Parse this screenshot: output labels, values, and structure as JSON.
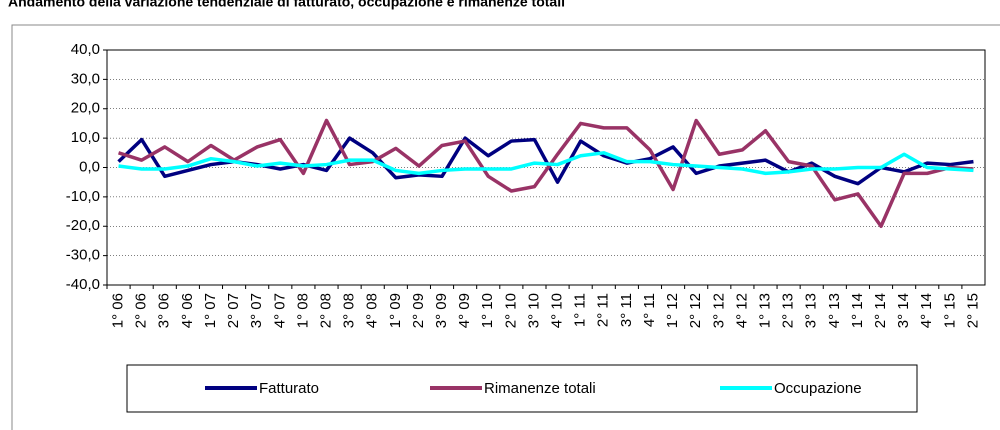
{
  "chart_data": {
    "type": "line",
    "title": "Andamento della variazione tendenziale di fatturato, occupazione e rimanenze totali",
    "categories": [
      "1° 06",
      "2° 06",
      "3° 06",
      "4° 06",
      "1° 07",
      "2° 07",
      "3° 07",
      "4° 07",
      "1° 08",
      "2° 08",
      "3° 08",
      "4° 08",
      "1° 09",
      "2° 09",
      "3° 09",
      "4° 09",
      "1° 10",
      "2° 10",
      "3° 10",
      "4° 10",
      "1° 11",
      "2° 11",
      "3° 11",
      "4° 11",
      "1° 12",
      "2° 12",
      "3° 12",
      "4° 12",
      "1° 13",
      "2° 13",
      "3° 13",
      "4° 13",
      "1° 14",
      "2° 14",
      "3° 14",
      "4° 14",
      "1° 15",
      "2° 15"
    ],
    "series": [
      {
        "name": "Fatturato",
        "color": "#000080",
        "values": [
          2,
          9.5,
          -3,
          -1,
          1,
          2,
          1,
          -0.5,
          1,
          -1,
          10,
          5,
          -3.5,
          -2.5,
          -3,
          10,
          4,
          9,
          9.5,
          -5,
          9,
          4,
          1.5,
          3,
          7,
          -2,
          0.5,
          1.5,
          2.5,
          -1.5,
          1.5,
          -3,
          -5.5,
          0,
          -1.5,
          1.5,
          1,
          2
        ]
      },
      {
        "name": "Rimanenze totali",
        "color": "#993366",
        "values": [
          5,
          2.5,
          7,
          2,
          7.5,
          2.5,
          7,
          9.5,
          -2,
          16,
          1,
          2,
          6.5,
          0.5,
          7.5,
          9,
          -3,
          -8,
          -6.5,
          4.5,
          15,
          13.5,
          13.5,
          6,
          -7.5,
          16,
          4.5,
          6,
          12.5,
          2,
          0.5,
          -11,
          -9,
          -20,
          -2,
          -2,
          0,
          -0.5
        ]
      },
      {
        "name": "Occupazione",
        "color": "#00ffff",
        "values": [
          0.5,
          -0.5,
          -0.5,
          0.5,
          3,
          2,
          0.5,
          1.5,
          0.5,
          1,
          2.5,
          2.5,
          -1,
          -2,
          -1,
          -0.5,
          -0.5,
          -0.5,
          1.5,
          1,
          4,
          5,
          2,
          2,
          1,
          0.5,
          0,
          -0.5,
          -2,
          -1.5,
          -0.5,
          -0.5,
          0,
          0,
          4.5,
          0,
          -0.5,
          -1
        ]
      }
    ],
    "ylim": [
      -40,
      40
    ],
    "yticks": [
      {
        "value": -40,
        "label": "-40,0"
      },
      {
        "value": -30,
        "label": "-30,0"
      },
      {
        "value": -20,
        "label": "-20,0"
      },
      {
        "value": -10,
        "label": "-10,0"
      },
      {
        "value": 0,
        "label": "0,0"
      },
      {
        "value": 10,
        "label": "10,0"
      },
      {
        "value": 20,
        "label": "20,0"
      },
      {
        "value": 30,
        "label": "30,0"
      },
      {
        "value": 40,
        "label": "40,0"
      }
    ],
    "grid": true
  }
}
